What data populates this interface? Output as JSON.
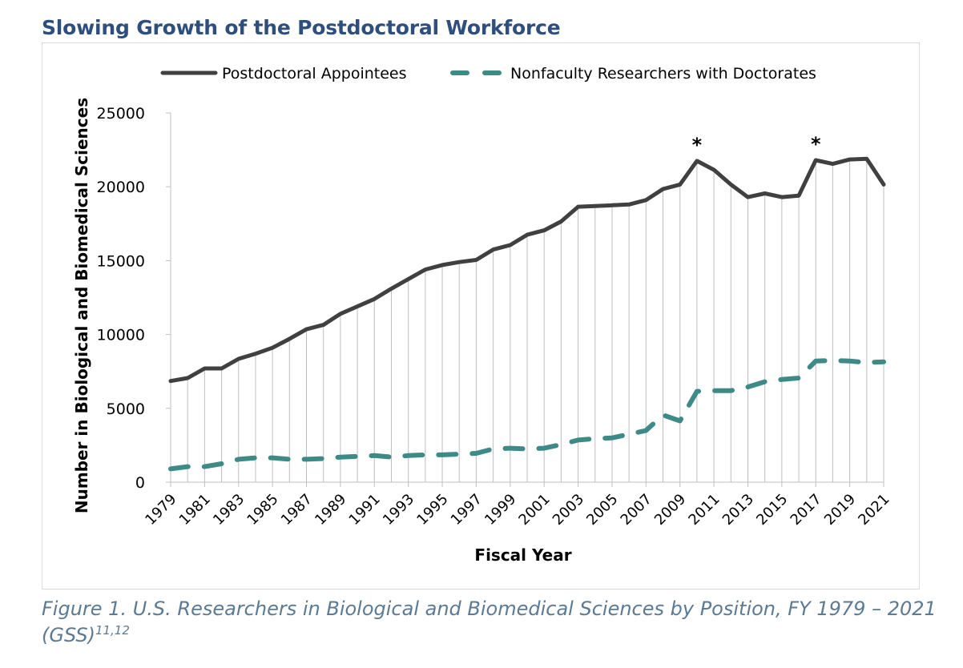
{
  "figure": {
    "title": "Slowing Growth of the Postdoctoral Workforce",
    "caption": "Figure 1. U.S. Researchers in Biological and Biomedical Sciences by Position, FY 1979 – 2021 (GSS)",
    "caption_sup": "11,12"
  },
  "chart_data": {
    "type": "line",
    "xlabel": "Fiscal Year",
    "ylabel": "Number in Biological and Biomedical Sciences",
    "ylim": [
      0,
      25000
    ],
    "yticks": [
      "0",
      "5000",
      "10000",
      "15000",
      "20000",
      "25000"
    ],
    "xlim": [
      1979,
      2021
    ],
    "xtick_labels": [
      "1979",
      "1981",
      "1983",
      "1985",
      "1987",
      "1989",
      "1991",
      "1993",
      "1995",
      "1997",
      "1999",
      "2001",
      "2003",
      "2005",
      "2007",
      "2009",
      "2011",
      "2013",
      "2015",
      "2017",
      "2019",
      "2021"
    ],
    "grid": "vertical lines at each year",
    "legend_position": "top",
    "x": [
      1979,
      1980,
      1981,
      1982,
      1983,
      1984,
      1985,
      1986,
      1987,
      1988,
      1989,
      1990,
      1991,
      1992,
      1993,
      1994,
      1995,
      1996,
      1997,
      1998,
      1999,
      2000,
      2001,
      2002,
      2003,
      2004,
      2005,
      2006,
      2007,
      2008,
      2009,
      2010,
      2011,
      2012,
      2013,
      2014,
      2015,
      2016,
      2017,
      2018,
      2019,
      2020,
      2021
    ],
    "series": [
      {
        "name": "Postdoctoral Appointees",
        "color": "#404040",
        "style": "solid",
        "values": [
          6850,
          7050,
          7700,
          7700,
          8350,
          8700,
          9100,
          9700,
          10350,
          10650,
          11400,
          11900,
          12400,
          13100,
          13750,
          14400,
          14700,
          14900,
          15050,
          15750,
          16050,
          16750,
          17050,
          17650,
          18650,
          18700,
          18750,
          18800,
          19100,
          19850,
          20150,
          21750,
          21150,
          20150,
          19300,
          19550,
          19300,
          19400,
          21800,
          21550,
          21850,
          21900,
          20150
        ]
      },
      {
        "name": "Nonfaculty Researchers with Doctorates",
        "color": "#3E8A87",
        "style": "dashed",
        "values": [
          900,
          1050,
          1050,
          1250,
          1550,
          1650,
          1650,
          1550,
          1550,
          1600,
          1700,
          1750,
          1800,
          1700,
          1800,
          1850,
          1850,
          1900,
          1950,
          2250,
          2300,
          2250,
          2300,
          2550,
          2850,
          2950,
          3000,
          3250,
          3500,
          4550,
          4150,
          6150,
          6200,
          6200,
          6450,
          6800,
          6950,
          7050,
          8200,
          8250,
          8200,
          8100,
          8150
        ]
      }
    ],
    "annotations": [
      {
        "x": 2010,
        "text": "*"
      },
      {
        "x": 2017,
        "text": "*"
      }
    ]
  }
}
